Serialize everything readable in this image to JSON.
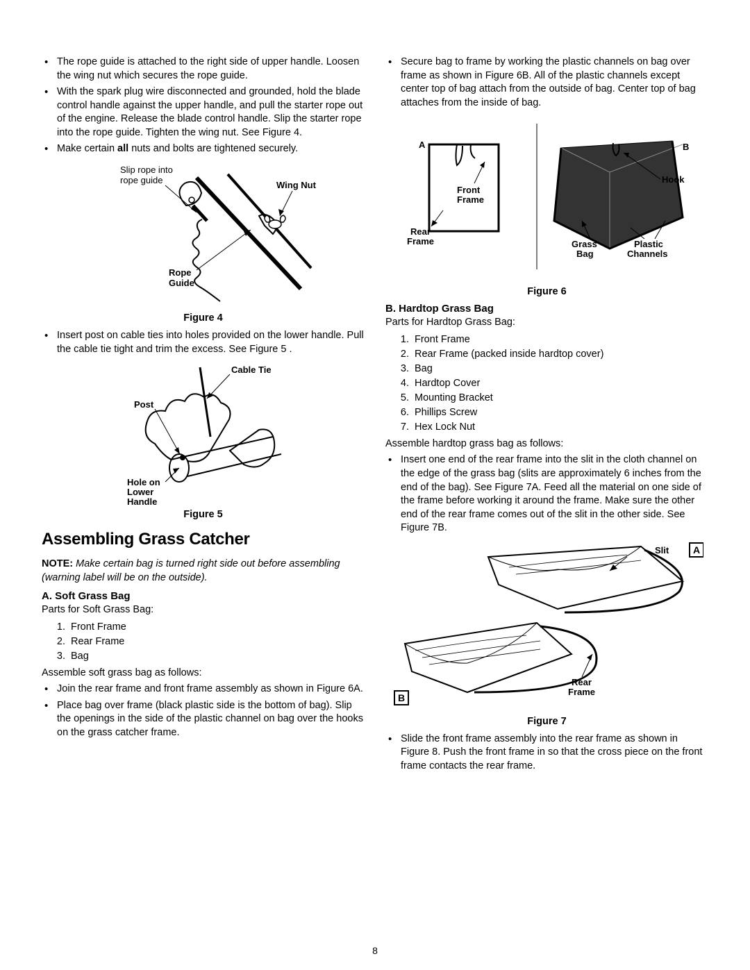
{
  "page_number": "8",
  "left": {
    "bullets1": [
      "The rope guide is attached to the right side of upper handle. Loosen the wing nut which secures the rope guide.",
      "With the spark plug wire disconnected and grounded, hold the blade control handle against the upper handle, and pull the starter rope out of the engine. Release the blade control handle. Slip the starter rope into the rope guide. Tighten the wing nut. See Figure 4.",
      "Make certain <b>all</b> nuts and bolts are tightened securely."
    ],
    "fig4": {
      "caption": "Figure 4",
      "labels": {
        "slip_rope": "Slip rope into rope guide",
        "wing_nut": "Wing Nut",
        "rope_guide": "Rope Guide"
      }
    },
    "bullets2": [
      "Insert post on cable ties into holes provided on the lower handle. Pull the cable tie tight and trim the excess. See Figure 5 ."
    ],
    "fig5": {
      "caption": "Figure 5",
      "labels": {
        "cable_tie": "Cable Tie",
        "post": "Post",
        "hole": "Hole on Lower Handle"
      }
    },
    "section_title": "Assembling Grass Catcher",
    "note_prefix": "NOTE:",
    "note_body": "Make certain bag is turned right side out before assembling (warning label will be on the outside).",
    "sub_a": "A. Soft Grass Bag",
    "parts_soft_intro": "Parts for Soft Grass Bag:",
    "parts_soft": [
      "Front Frame",
      "Rear Frame",
      "Bag"
    ],
    "assemble_soft_intro": "Assemble soft grass bag as follows:",
    "bullets3": [
      "Join the rear frame and front frame assembly as shown in Figure 6A.",
      "Place bag over frame (black plastic side is the bottom of bag). Slip the openings in the side of the plastic channel on bag over the hooks on the grass catcher frame."
    ]
  },
  "right": {
    "bullets1": [
      "Secure bag to frame by working the plastic channels on bag over frame as shown in Figure 6B. All of the plastic channels except center top of bag attach from the outside of bag. Center top of bag attaches from the inside of bag."
    ],
    "fig6": {
      "caption": "Figure 6",
      "labels": {
        "A": "A",
        "B": "B",
        "front_frame": "Front Frame",
        "rear_frame": "Rear Frame",
        "hook": "Hook",
        "grass_bag": "Grass Bag",
        "plastic_channels": "Plastic Channels"
      }
    },
    "sub_b": "B. Hardtop Grass Bag",
    "parts_hard_intro": "Parts for Hardtop Grass Bag:",
    "parts_hard": [
      "Front Frame",
      "Rear Frame (packed inside hardtop cover)",
      "Bag",
      "Hardtop Cover",
      "Mounting Bracket",
      "Phillips Screw",
      "Hex Lock Nut"
    ],
    "assemble_hard_intro": "Assemble hardtop grass bag as follows:",
    "bullets2": [
      "Insert one end of the rear frame into the slit in the cloth channel on the edge of the grass bag (slits are approximately 6 inches from the end of the bag). See Figure 7A. Feed all the material on one side of the frame before working it around the frame. Make sure the other end of the rear frame comes out of the slit in the other side. See Figure 7B."
    ],
    "fig7": {
      "caption": "Figure 7",
      "labels": {
        "A": "A",
        "B": "B",
        "slit": "Slit",
        "rear_frame": "Rear Frame"
      }
    },
    "bullets3": [
      "Slide the front frame assembly into the rear frame as shown in Figure 8. Push the front frame in so that the cross piece on the front frame contacts the rear frame."
    ]
  }
}
